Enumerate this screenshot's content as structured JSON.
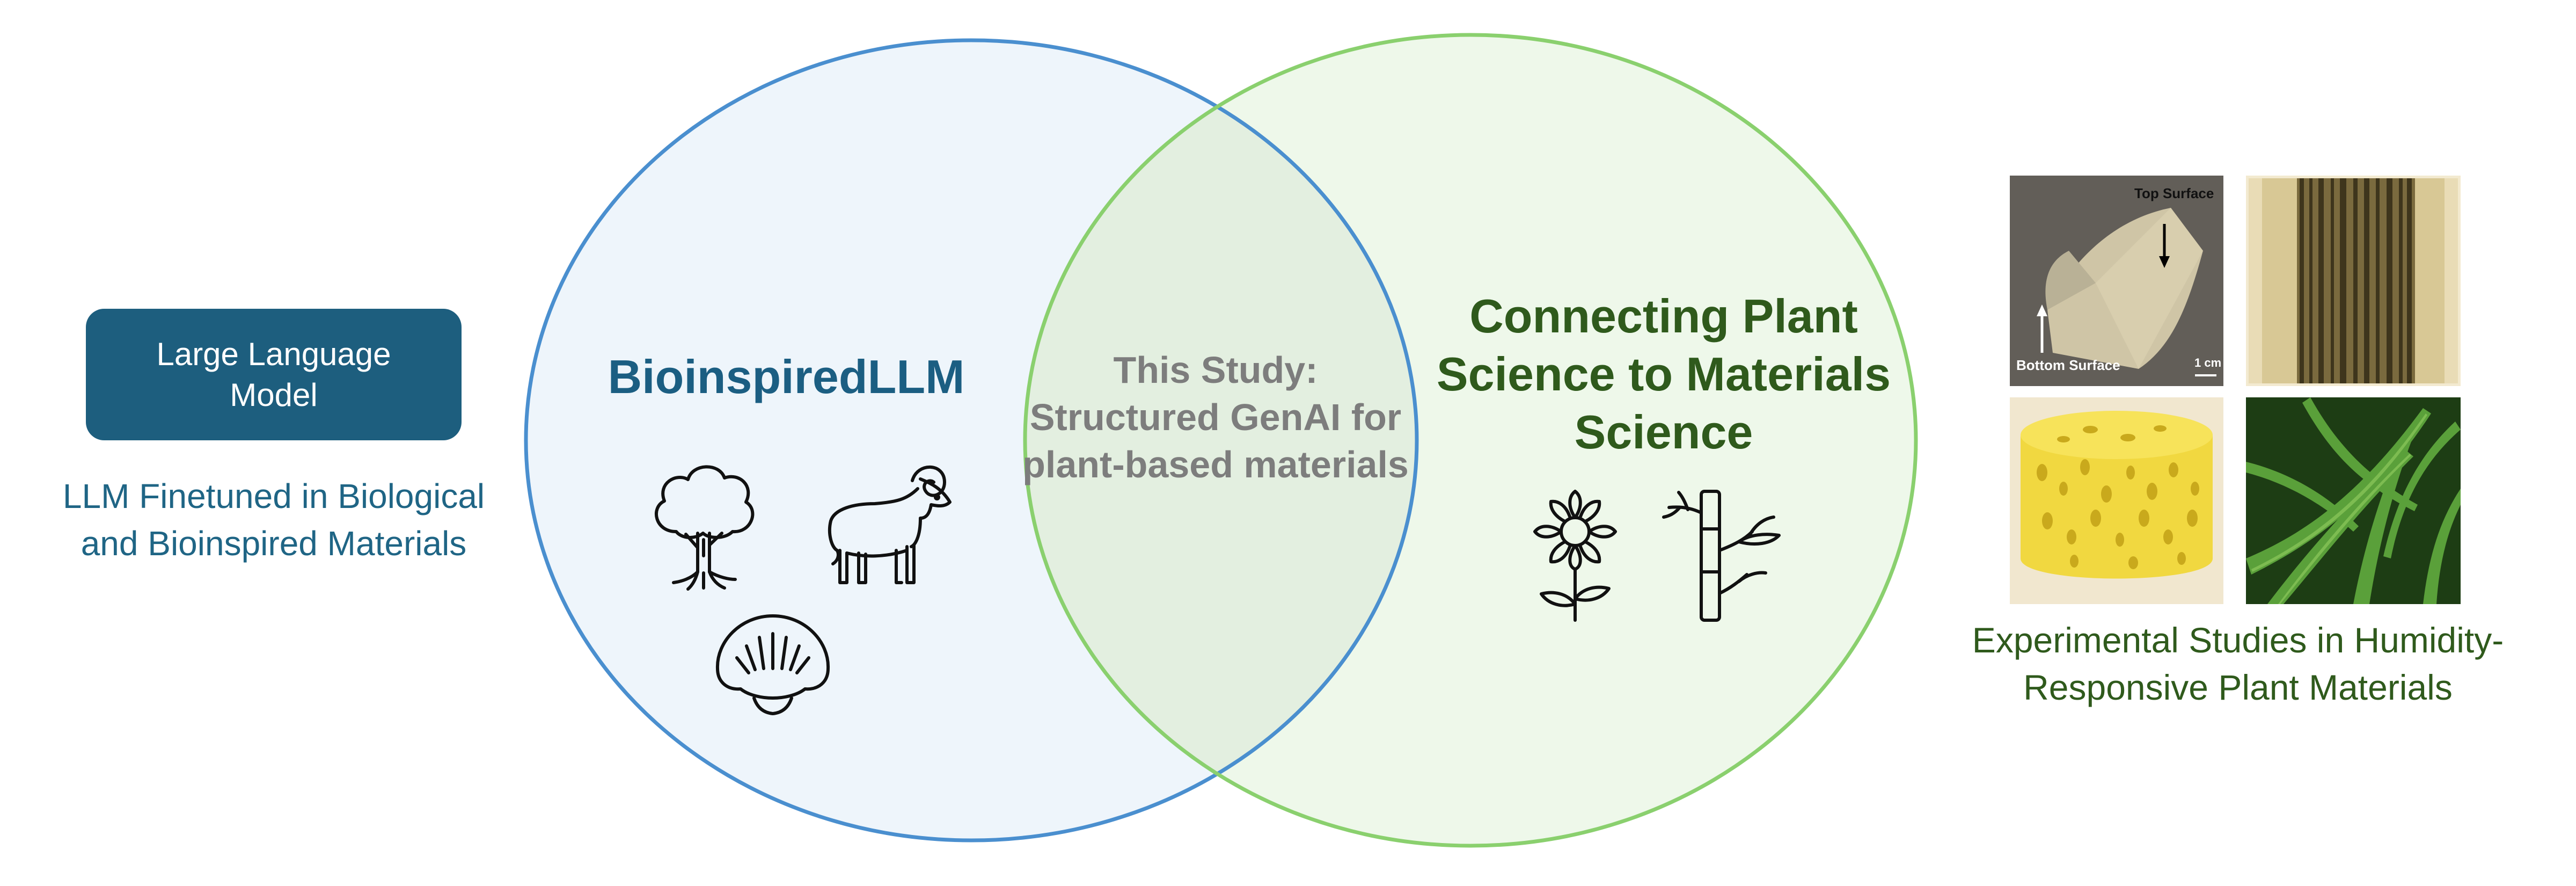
{
  "llm_box": {
    "label": "Large Language Model"
  },
  "llm_caption": "LLM Finetuned in Biological and Bioinspired Materials",
  "bio_circle": {
    "title": "BioinspiredLLM",
    "icons": [
      "tree-icon",
      "ram-icon",
      "seashell-icon"
    ]
  },
  "overlap": {
    "text": "This Study: Structured GenAI for plant-based materials"
  },
  "plant_circle": {
    "title": "Connecting Plant Science to Materials Science",
    "icons": [
      "flower-icon",
      "bamboo-icon"
    ]
  },
  "photos": {
    "film": {
      "top_label": "Top Surface",
      "bottom_label": "Bottom Surface",
      "scale_label": "1 cm"
    }
  },
  "exp_caption": "Experimental Studies in Humidity-Responsive Plant Materials",
  "colors": {
    "bio_circle_stroke": "#4a8fcf",
    "bio_circle_fill": "#eef5fb",
    "plant_circle_stroke": "#8ad06e",
    "plant_circle_fill": "#eef8ea",
    "llm_box": "#1d5e7e",
    "plant_text": "#2f5a1c",
    "study_text": "#7d7d7d"
  }
}
